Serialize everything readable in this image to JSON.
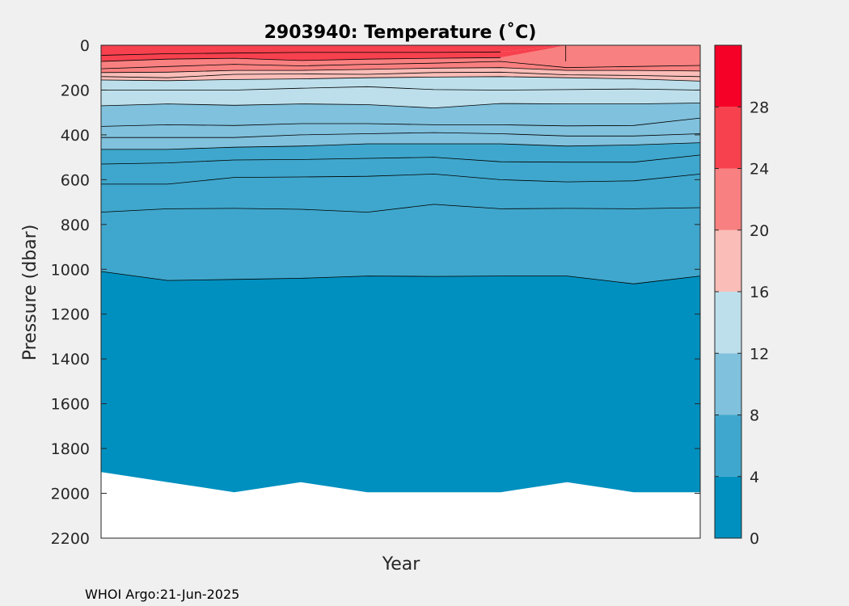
{
  "chart_data": {
    "type": "contour",
    "title": "2903940:  Temperature (˚C)",
    "xlabel": "Year",
    "ylabel": "Pressure (dbar)",
    "y_reversed": true,
    "ylim": [
      0,
      2200
    ],
    "yticks": [
      0,
      200,
      400,
      600,
      800,
      1000,
      1200,
      1400,
      1600,
      1800,
      2000,
      2200
    ],
    "colorbar": {
      "range": [
        0,
        32
      ],
      "ticks": [
        0,
        4,
        8,
        12,
        16,
        20,
        24,
        28
      ],
      "level_colors": [
        "#0090bf",
        "#3fa7cd",
        "#80c1dd",
        "#bddfeb",
        "#fbbdb8",
        "#f98080",
        "#f7414e",
        "#f50027"
      ]
    },
    "profile_index": [
      0,
      1,
      2,
      3,
      4,
      5,
      6,
      7,
      8,
      9
    ],
    "max_pressure": [
      1905,
      1950,
      1995,
      1950,
      1995,
      1995,
      1995,
      1950,
      1995,
      1995
    ],
    "isotherms": [
      {
        "t": 4,
        "p": [
          1010,
          1050,
          1045,
          1040,
          1030,
          1032,
          1030,
          1030,
          1065,
          1030
        ]
      },
      {
        "t": 5,
        "p": [
          745,
          730,
          728,
          732,
          745,
          710,
          730,
          728,
          730,
          725
        ]
      },
      {
        "t": 6,
        "p": [
          620,
          620,
          590,
          588,
          585,
          575,
          600,
          610,
          605,
          575
        ]
      },
      {
        "t": 7,
        "p": [
          530,
          525,
          512,
          510,
          505,
          500,
          520,
          522,
          522,
          490
        ]
      },
      {
        "t": 8,
        "p": [
          465,
          465,
          455,
          450,
          440,
          440,
          440,
          450,
          445,
          435
        ]
      },
      {
        "t": 9,
        "p": [
          412,
          412,
          412,
          400,
          395,
          390,
          395,
          405,
          405,
          395
        ]
      },
      {
        "t": 10,
        "p": [
          362,
          355,
          358,
          350,
          350,
          355,
          355,
          360,
          358,
          325
        ]
      },
      {
        "t": 12,
        "p": [
          270,
          262,
          268,
          262,
          265,
          280,
          260,
          262,
          262,
          258
        ]
      },
      {
        "t": 14,
        "p": [
          200,
          200,
          200,
          192,
          185,
          198,
          200,
          198,
          195,
          200
        ]
      },
      {
        "t": 16,
        "p": [
          155,
          158,
          153,
          150,
          145,
          142,
          140,
          145,
          150,
          160
        ]
      },
      {
        "t": 18,
        "p": [
          140,
          145,
          130,
          128,
          130,
          122,
          120,
          132,
          135,
          140
        ]
      },
      {
        "t": 20,
        "p": [
          122,
          120,
          112,
          112,
          108,
          102,
          100,
          112,
          112,
          115
        ]
      },
      {
        "t": 22,
        "p": [
          105,
          95,
          85,
          92,
          85,
          80,
          72,
          100,
          95,
          90
        ]
      },
      {
        "t": 24,
        "p": [
          72,
          62,
          58,
          68,
          62,
          58,
          55,
          0,
          0,
          0
        ]
      },
      {
        "t": 26,
        "p": [
          45,
          38,
          35,
          32,
          32,
          32,
          30,
          0,
          0,
          0
        ]
      }
    ],
    "surface_temp": [
      26.8,
      26.8,
      27.0,
      27.0,
      27.0,
      27.0,
      27.0,
      23.5,
      23.0,
      23.0
    ]
  },
  "footer": {
    "credit": "WHOI Argo:21-Jun-2025"
  }
}
